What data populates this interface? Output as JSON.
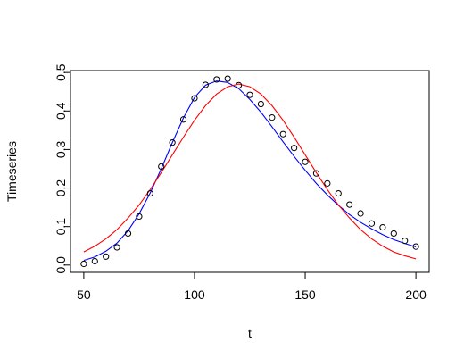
{
  "chart_data": {
    "type": "scatter",
    "xlabel": "t",
    "ylabel": "Timeseries",
    "xlim": [
      44,
      206
    ],
    "ylim": [
      -0.019,
      0.505
    ],
    "x_ticks": [
      50,
      100,
      150,
      200
    ],
    "y_ticks": [
      0.0,
      0.1,
      0.2,
      0.3,
      0.4,
      0.5
    ],
    "x_tick_labels": [
      "50",
      "100",
      "150",
      "200"
    ],
    "y_tick_labels": [
      "0.0",
      "0.1",
      "0.2",
      "0.3",
      "0.4",
      "0.5"
    ],
    "grid": false,
    "legend": "none",
    "series": [
      {
        "kind": "points",
        "color": "#000000",
        "marker": "open-circle",
        "x": [
          50,
          55,
          60,
          65,
          70,
          75,
          80,
          85,
          90,
          95,
          100,
          105,
          110,
          115,
          120,
          125,
          130,
          135,
          140,
          145,
          150,
          155,
          160,
          165,
          170,
          175,
          180,
          185,
          190,
          195,
          200
        ],
        "y": [
          0.003,
          0.01,
          0.022,
          0.046,
          0.082,
          0.126,
          0.186,
          0.256,
          0.318,
          0.378,
          0.433,
          0.468,
          0.482,
          0.484,
          0.467,
          0.442,
          0.418,
          0.383,
          0.34,
          0.304,
          0.268,
          0.238,
          0.212,
          0.186,
          0.157,
          0.134,
          0.108,
          0.098,
          0.082,
          0.063,
          0.048
        ]
      },
      {
        "kind": "line",
        "color": "#0000ff",
        "x": [
          50,
          55,
          60,
          65,
          70,
          75,
          80,
          85,
          90,
          95,
          100,
          105,
          110,
          115,
          120,
          125,
          130,
          135,
          140,
          145,
          150,
          155,
          160,
          165,
          170,
          175,
          180,
          185,
          190,
          195,
          200
        ],
        "y": [
          0.012,
          0.021,
          0.036,
          0.057,
          0.089,
          0.133,
          0.187,
          0.25,
          0.318,
          0.382,
          0.435,
          0.467,
          0.478,
          0.474,
          0.458,
          0.43,
          0.397,
          0.359,
          0.32,
          0.282,
          0.246,
          0.212,
          0.182,
          0.155,
          0.131,
          0.111,
          0.094,
          0.079,
          0.066,
          0.056,
          0.047
        ]
      },
      {
        "kind": "line",
        "color": "#ff0000",
        "x": [
          50,
          55,
          60,
          65,
          70,
          75,
          80,
          85,
          90,
          95,
          100,
          105,
          110,
          115,
          120,
          125,
          130,
          135,
          140,
          145,
          150,
          155,
          160,
          165,
          170,
          175,
          180,
          185,
          190,
          195,
          200
        ],
        "y": [
          0.034,
          0.049,
          0.068,
          0.092,
          0.122,
          0.156,
          0.196,
          0.24,
          0.286,
          0.332,
          0.376,
          0.414,
          0.444,
          0.463,
          0.47,
          0.463,
          0.444,
          0.414,
          0.376,
          0.332,
          0.286,
          0.24,
          0.196,
          0.156,
          0.122,
          0.092,
          0.068,
          0.049,
          0.034,
          0.024,
          0.016
        ]
      }
    ]
  }
}
